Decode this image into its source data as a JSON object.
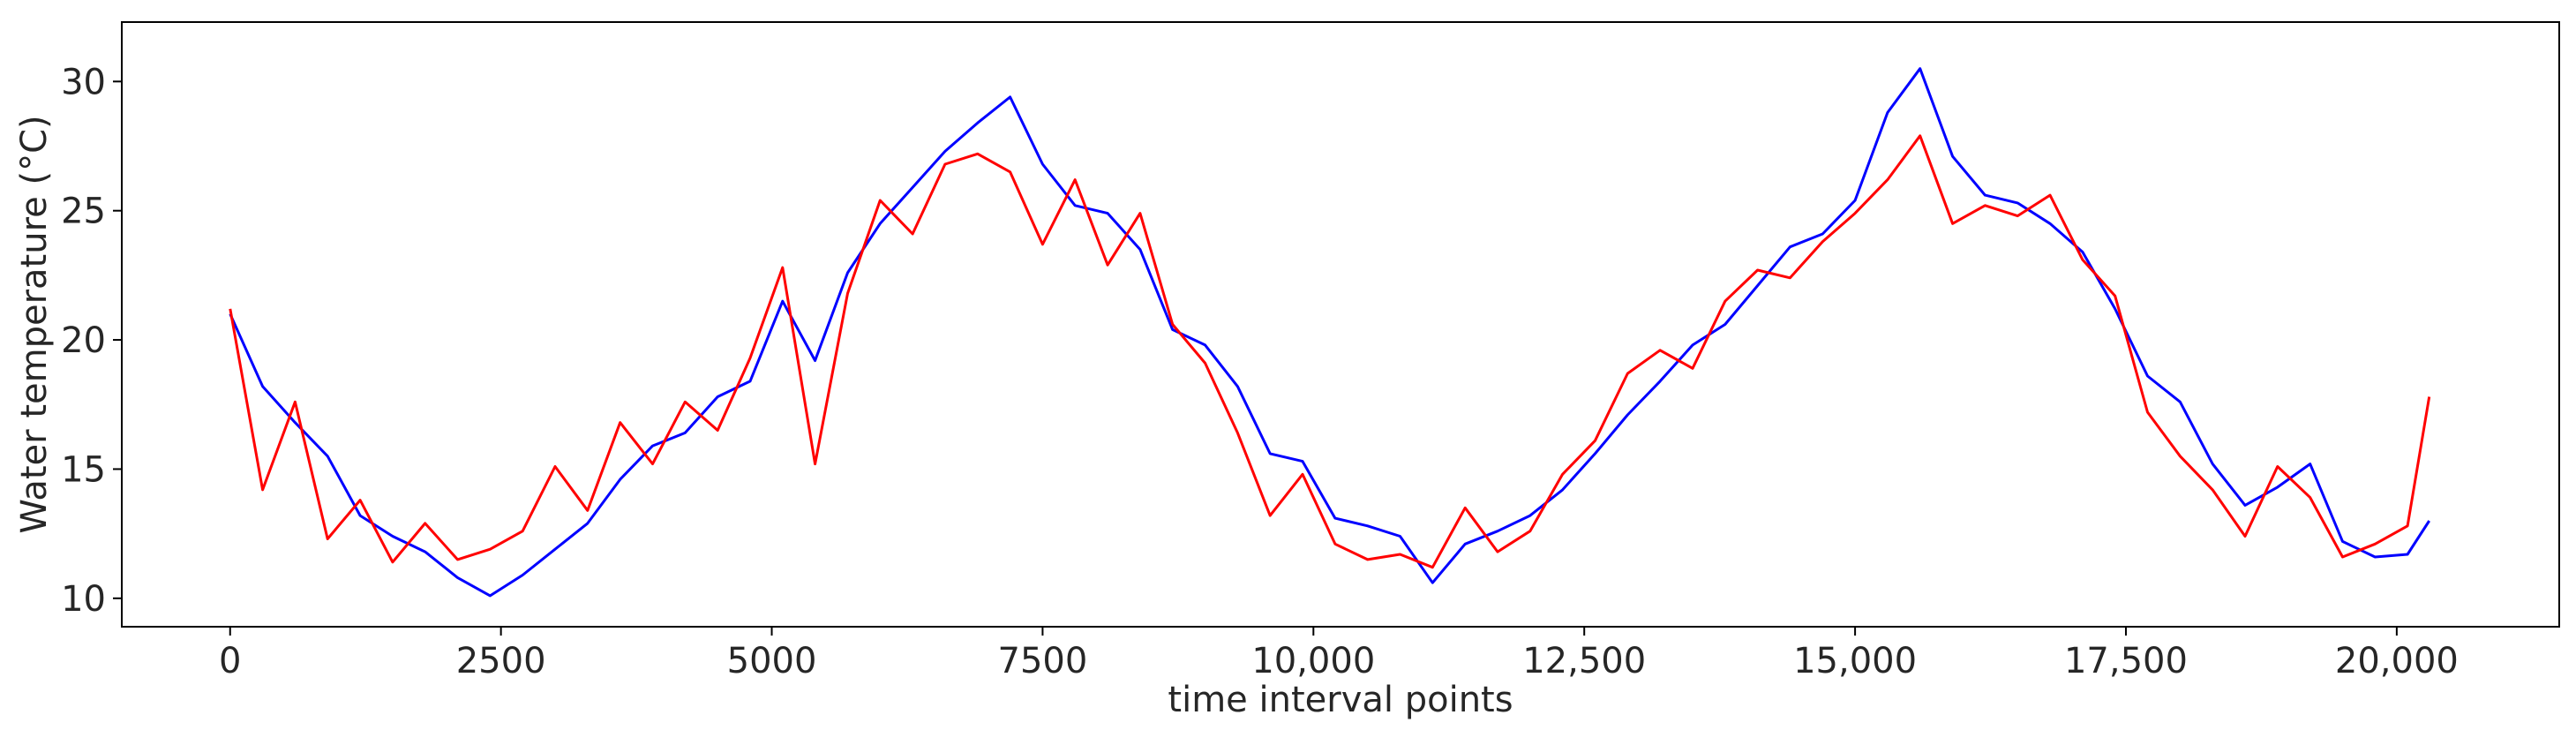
{
  "chart_data": {
    "type": "line",
    "title": "",
    "xlabel": "time interval points",
    "ylabel": "Water temperature (°C)",
    "xlim": [
      -1000,
      21500
    ],
    "ylim": [
      8.9,
      32.3
    ],
    "xticks": [
      0,
      2500,
      5000,
      7500,
      10000,
      12500,
      15000,
      17500,
      20000
    ],
    "xtick_labels": [
      "0",
      "2500",
      "5000",
      "7500",
      "10,000",
      "12,500",
      "15,000",
      "17,500",
      "20,000"
    ],
    "yticks": [
      10,
      15,
      20,
      25,
      30
    ],
    "ytick_labels": [
      "10",
      "15",
      "20",
      "25",
      "30"
    ],
    "grid": false,
    "legend": "none",
    "series": [
      {
        "color": "#0000ff",
        "x": [
          0,
          300,
          600,
          900,
          1200,
          1500,
          1800,
          2100,
          2400,
          2700,
          3000,
          3300,
          3600,
          3900,
          4200,
          4500,
          4800,
          5100,
          5400,
          5700,
          6000,
          6300,
          6600,
          6900,
          7200,
          7500,
          7800,
          8100,
          8400,
          8700,
          9000,
          9300,
          9600,
          9900,
          10200,
          10500,
          10800,
          11100,
          11400,
          11700,
          12000,
          12300,
          12600,
          12900,
          13200,
          13500,
          13800,
          14100,
          14400,
          14700,
          15000,
          15300,
          15600,
          15900,
          16200,
          16500,
          16800,
          17100,
          17400,
          17700,
          18000,
          18300,
          18600,
          18900,
          19200,
          19500,
          19800,
          20100,
          20300
        ],
        "y": [
          21,
          18.2,
          16.8,
          15.5,
          13.2,
          12.4,
          11.8,
          10.8,
          10.1,
          10.9,
          11.9,
          12.9,
          14.6,
          15.9,
          16.4,
          17.8,
          18.4,
          21.5,
          19.2,
          22.6,
          24.5,
          25.9,
          27.3,
          28.4,
          29.4,
          26.8,
          25.2,
          24.9,
          23.5,
          20.4,
          19.8,
          18.2,
          15.6,
          15.3,
          13.1,
          12.8,
          12.4,
          10.6,
          12.1,
          12.6,
          13.2,
          14.2,
          15.6,
          17.1,
          18.4,
          19.8,
          20.6,
          22.1,
          23.6,
          24.1,
          25.4,
          28.8,
          30.5,
          27.1,
          25.6,
          25.3,
          24.5,
          23.4,
          21.2,
          18.6,
          17.6,
          15.2,
          13.6,
          14.3,
          15.2,
          12.2,
          11.6,
          11.7,
          13
        ]
      },
      {
        "color": "#ff0000",
        "x": [
          0,
          300,
          600,
          900,
          1200,
          1500,
          1800,
          2100,
          2400,
          2700,
          3000,
          3300,
          3600,
          3900,
          4200,
          4500,
          4800,
          5100,
          5400,
          5700,
          6000,
          6300,
          6600,
          6900,
          7200,
          7500,
          7800,
          8100,
          8400,
          8700,
          9000,
          9300,
          9600,
          9900,
          10200,
          10500,
          10800,
          11100,
          11400,
          11700,
          12000,
          12300,
          12600,
          12900,
          13200,
          13500,
          13800,
          14100,
          14400,
          14700,
          15000,
          15300,
          15600,
          15900,
          16200,
          16500,
          16800,
          17100,
          17400,
          17700,
          18000,
          18300,
          18600,
          18900,
          19200,
          19500,
          19800,
          20100,
          20300
        ],
        "y": [
          21.2,
          14.2,
          17.6,
          12.3,
          13.8,
          11.4,
          12.9,
          11.5,
          11.9,
          12.6,
          15.1,
          13.4,
          16.8,
          15.2,
          17.6,
          16.5,
          19.3,
          22.8,
          15.2,
          21.8,
          25.4,
          24.1,
          26.8,
          27.2,
          26.5,
          23.7,
          26.2,
          22.9,
          24.9,
          20.6,
          19.1,
          16.4,
          13.2,
          14.8,
          12.1,
          11.5,
          11.7,
          11.2,
          13.5,
          11.8,
          12.6,
          14.8,
          16.1,
          18.7,
          19.6,
          18.9,
          21.5,
          22.7,
          22.4,
          23.8,
          24.9,
          26.2,
          27.9,
          24.5,
          25.2,
          24.8,
          25.6,
          23.1,
          21.7,
          17.2,
          15.5,
          14.2,
          12.4,
          15.1,
          13.9,
          11.6,
          12.1,
          12.8,
          17.8
        ]
      }
    ]
  }
}
